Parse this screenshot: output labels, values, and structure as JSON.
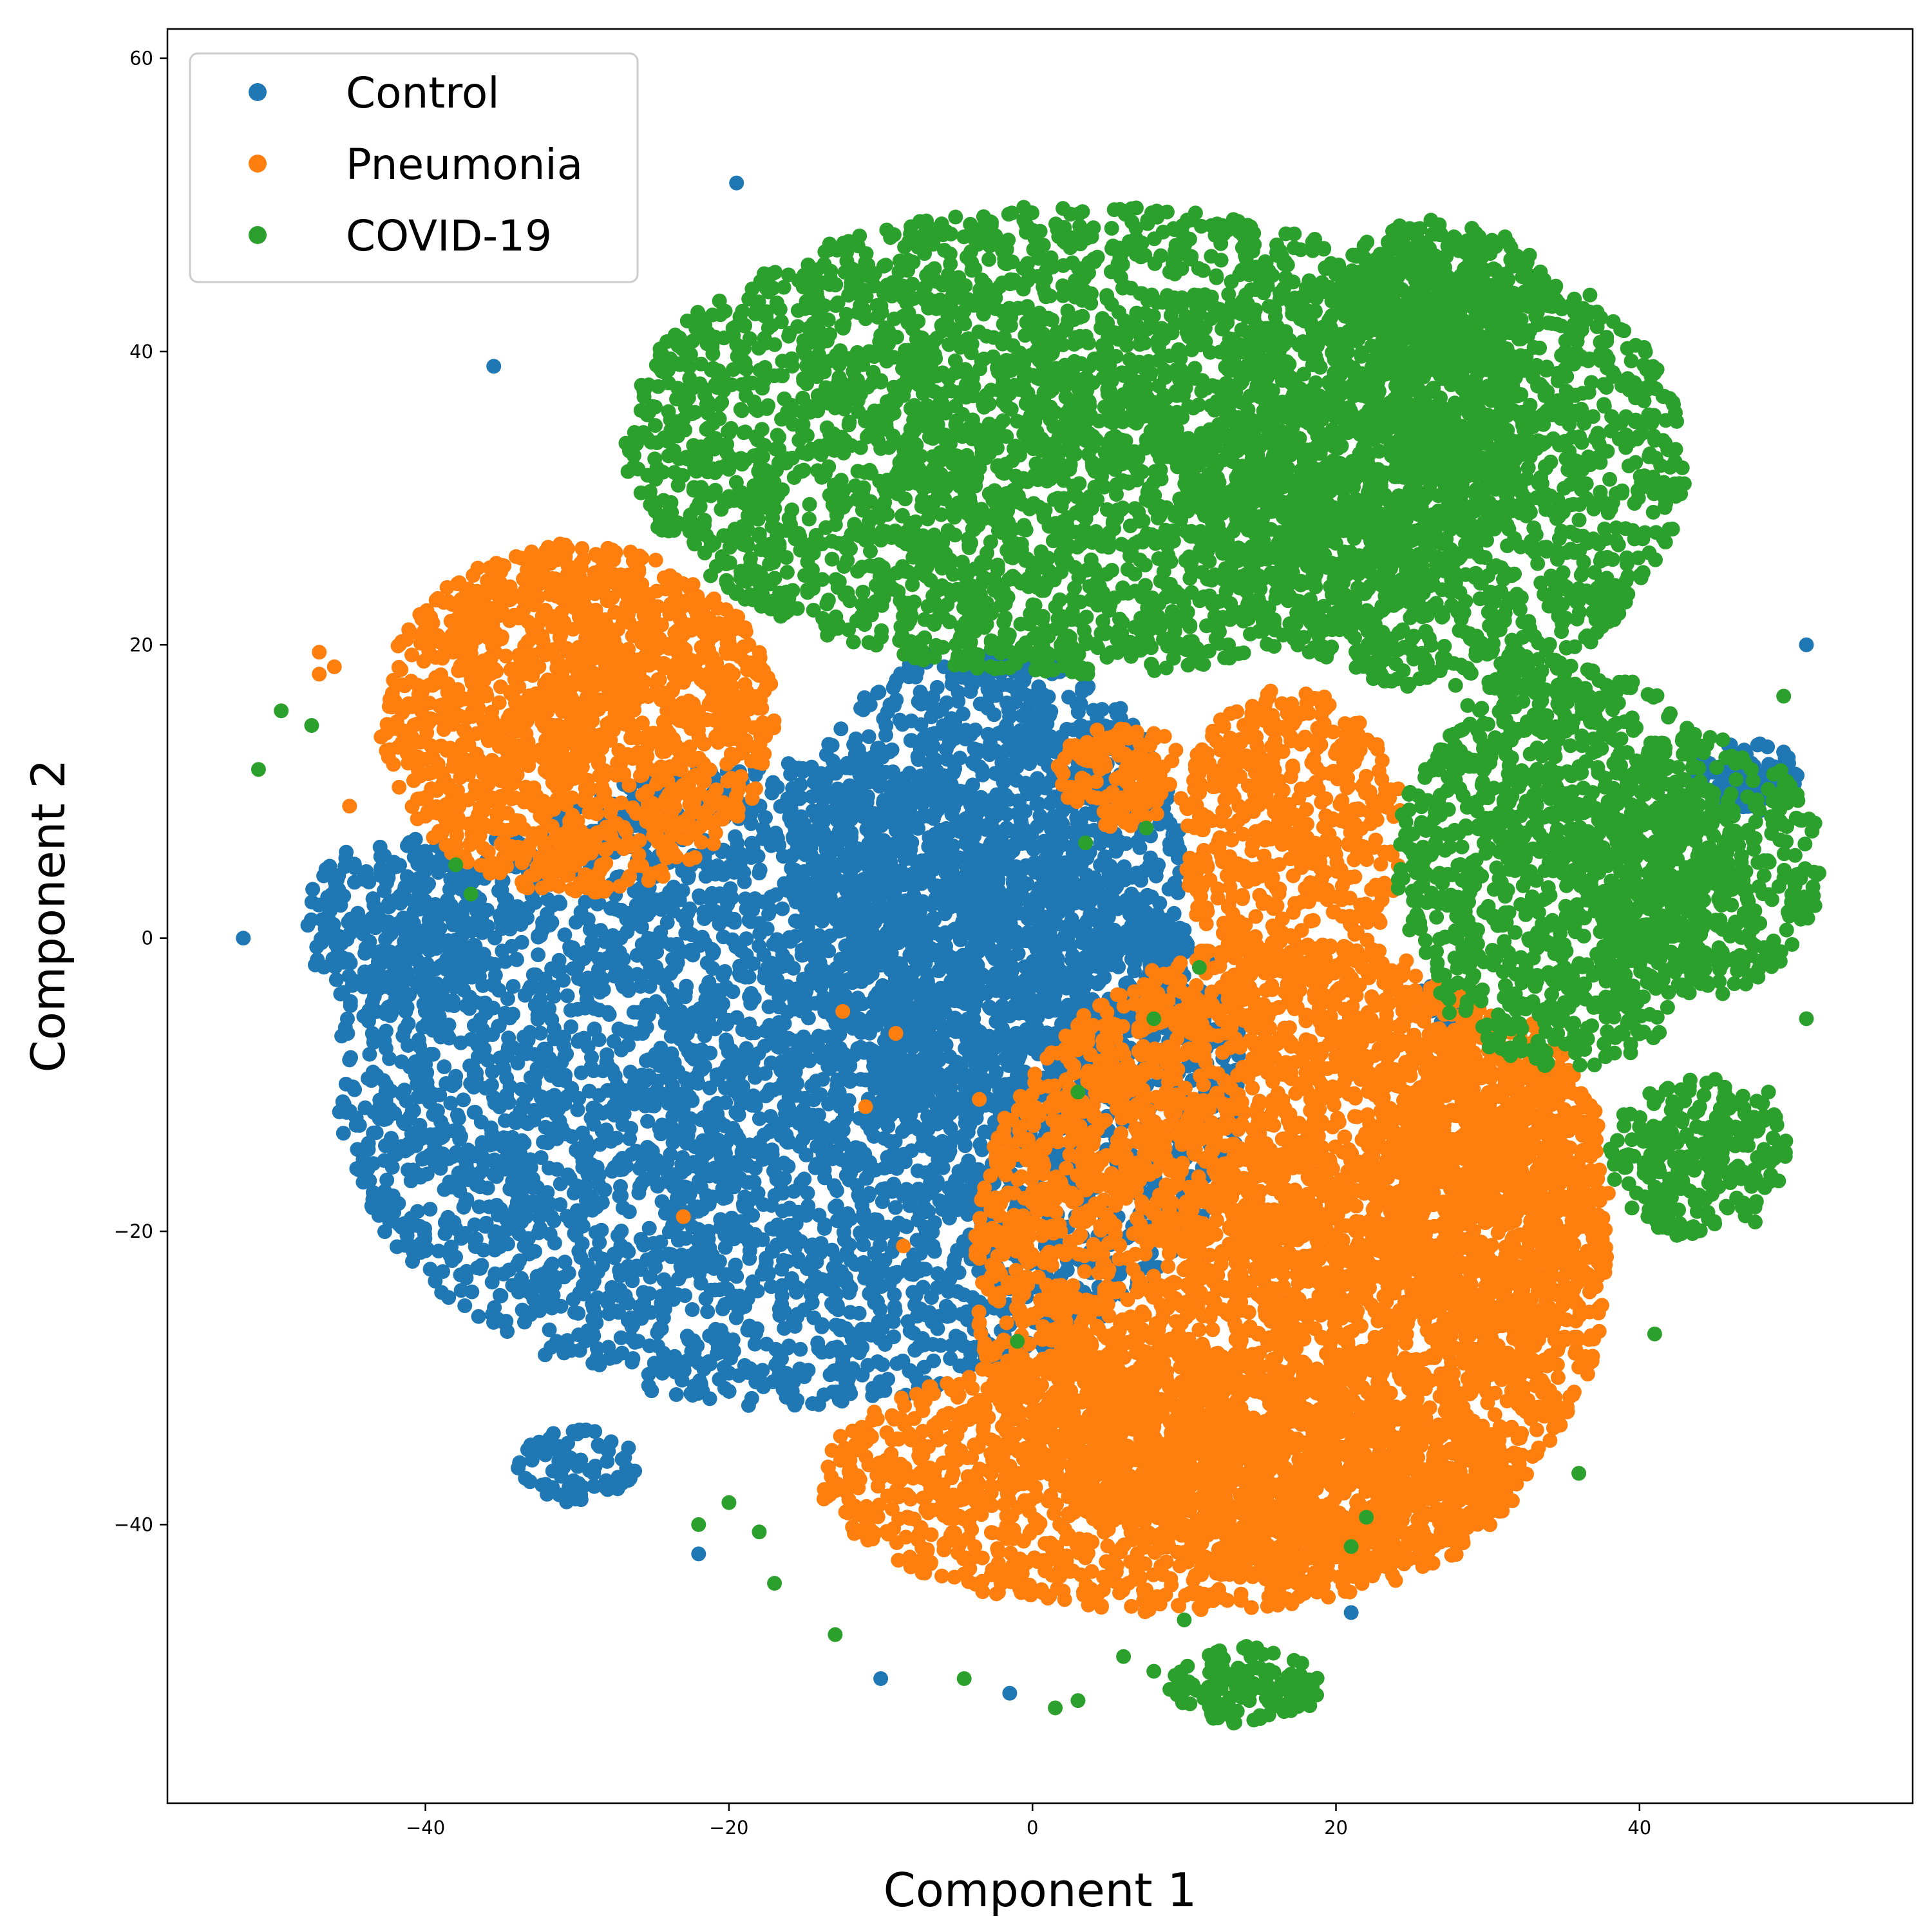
{
  "chart_data": {
    "type": "scatter",
    "title": "",
    "xlabel": "Component 1",
    "ylabel": "Component 2",
    "xlim": [
      -57,
      58
    ],
    "ylim": [
      -59,
      62
    ],
    "xticks": [
      -40,
      -20,
      0,
      20,
      40
    ],
    "yticks": [
      -40,
      -20,
      0,
      20,
      40,
      60
    ],
    "grid": false,
    "legend": "upper-left",
    "series": [
      {
        "name": "Control",
        "color": "#1f77b4",
        "clusters": [
          {
            "cx": -16,
            "cy": -10,
            "rx": 30,
            "ry": 22,
            "n": 4200
          },
          {
            "cx": -3,
            "cy": 4,
            "rx": 13,
            "ry": 16,
            "n": 1400
          },
          {
            "cx": -42,
            "cy": 1,
            "rx": 6,
            "ry": 6,
            "n": 250
          },
          {
            "cx": -30,
            "cy": -36,
            "rx": 4,
            "ry": 2.5,
            "n": 80
          },
          {
            "cx": 47,
            "cy": 11,
            "rx": 3.5,
            "ry": 2.5,
            "n": 90
          },
          {
            "cx": 27,
            "cy": -5,
            "rx": 1.8,
            "ry": 2.2,
            "n": 30
          }
        ],
        "outliers": [
          [
            -52,
            0
          ],
          [
            -35.5,
            39
          ],
          [
            -19.5,
            51.5
          ],
          [
            51,
            20
          ],
          [
            -22,
            -42
          ],
          [
            -10,
            -50.5
          ],
          [
            21,
            -46
          ],
          [
            -1.5,
            -51.5
          ],
          [
            0.3,
            13
          ]
        ]
      },
      {
        "name": "Pneumonia",
        "color": "#ff7f0e",
        "clusters": [
          {
            "cx": -30,
            "cy": 15,
            "rx": 13,
            "ry": 12,
            "n": 1500
          },
          {
            "cx": 17,
            "cy": -22,
            "rx": 21,
            "ry": 22,
            "n": 4000
          },
          {
            "cx": 9,
            "cy": -37,
            "rx": 23,
            "ry": 9,
            "n": 1600
          },
          {
            "cx": 17,
            "cy": 7,
            "rx": 7.5,
            "ry": 10,
            "n": 550
          },
          {
            "cx": 6,
            "cy": 11,
            "rx": 4.5,
            "ry": 3.5,
            "n": 130
          },
          {
            "cx": 30,
            "cy": -17,
            "rx": 8,
            "ry": 12,
            "n": 700
          }
        ],
        "outliers": [
          [
            -12.5,
            -5
          ],
          [
            -9,
            -6.5
          ],
          [
            -11,
            -11.5
          ],
          [
            -3.5,
            -11
          ],
          [
            -23,
            -19
          ],
          [
            -8.5,
            -21
          ],
          [
            -47,
            19.5
          ],
          [
            -47,
            18
          ],
          [
            -46,
            18.5
          ],
          [
            -45,
            9
          ]
        ]
      },
      {
        "name": "COVID-19",
        "color": "#2ca02c",
        "clusters": [
          {
            "cx": 3,
            "cy": 34,
            "rx": 30,
            "ry": 16,
            "n": 3500
          },
          {
            "cx": 27,
            "cy": 32,
            "rx": 16,
            "ry": 15,
            "n": 1600
          },
          {
            "cx": 35,
            "cy": 5,
            "rx": 11,
            "ry": 14,
            "n": 1100
          },
          {
            "cx": 44,
            "cy": 5,
            "rx": 8,
            "ry": 9,
            "n": 450
          },
          {
            "cx": 44,
            "cy": -15,
            "rx": 6,
            "ry": 5.5,
            "n": 250
          },
          {
            "cx": 14,
            "cy": -51,
            "rx": 5,
            "ry": 2.7,
            "n": 120
          },
          {
            "cx": 27,
            "cy": 44,
            "rx": 7,
            "ry": 5,
            "n": 350
          }
        ],
        "outliers": [
          [
            -49.5,
            15.5
          ],
          [
            -51,
            11.5
          ],
          [
            -47.5,
            14.5
          ],
          [
            -38,
            5
          ],
          [
            -37,
            3
          ],
          [
            -20,
            -38.5
          ],
          [
            -22,
            -40
          ],
          [
            -18,
            -40.5
          ],
          [
            -17,
            -44
          ],
          [
            -13,
            -47.5
          ],
          [
            -4.5,
            -50.5
          ],
          [
            1.5,
            -52.5
          ],
          [
            3,
            -52
          ],
          [
            6,
            -49
          ],
          [
            8,
            -50
          ],
          [
            10,
            -46.5
          ],
          [
            -1,
            -27.5
          ],
          [
            3,
            -10.5
          ],
          [
            3.5,
            6.5
          ],
          [
            7.5,
            7.5
          ],
          [
            8,
            -5.5
          ],
          [
            11,
            -2
          ],
          [
            21,
            -41.5
          ],
          [
            22,
            -39.5
          ],
          [
            36,
            -36.5
          ],
          [
            41,
            -27
          ],
          [
            49.5,
            16.5
          ],
          [
            48.5,
            -10.5
          ],
          [
            51,
            -5.5
          ],
          [
            51.5,
            4.5
          ]
        ]
      }
    ]
  }
}
